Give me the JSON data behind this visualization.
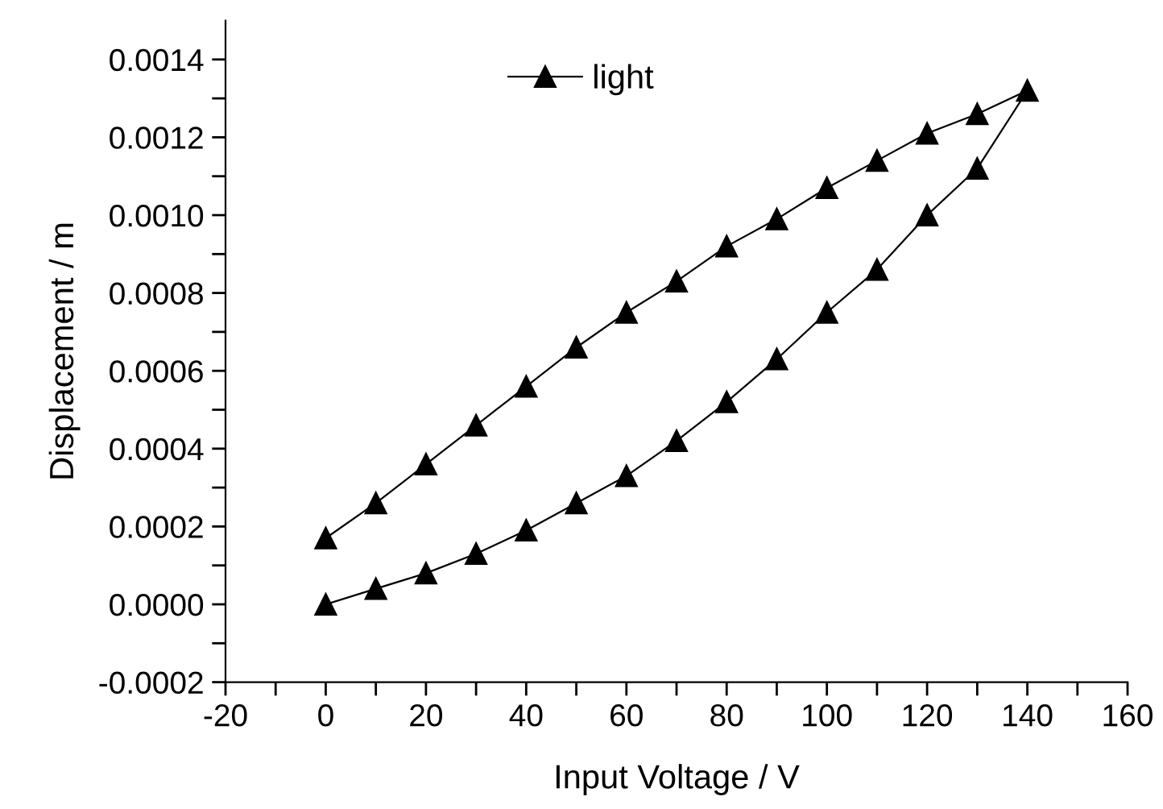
{
  "chart_data": {
    "type": "line",
    "xlabel": "Input Voltage / V",
    "ylabel": "Displacement / m",
    "series": [
      {
        "name": "light",
        "color": "#000000",
        "x": [
          0,
          10,
          20,
          30,
          40,
          50,
          60,
          70,
          80,
          90,
          100,
          110,
          120,
          130,
          140,
          130,
          120,
          110,
          100,
          90,
          80,
          70,
          60,
          50,
          40,
          30,
          20,
          10,
          0
        ],
        "values": [
          0.0,
          4e-05,
          8e-05,
          0.00013,
          0.00019,
          0.00026,
          0.00033,
          0.00042,
          0.00052,
          0.00063,
          0.00075,
          0.00086,
          0.001,
          0.00112,
          0.00132,
          0.00126,
          0.00121,
          0.00114,
          0.00107,
          0.00099,
          0.00092,
          0.00083,
          0.00075,
          0.00066,
          0.00056,
          0.00046,
          0.00036,
          0.00026,
          0.00017
        ]
      }
    ],
    "xlim": [
      -20,
      160
    ],
    "ylim": [
      -0.0002,
      0.0015
    ],
    "xticks": [
      -20,
      {
        "value": -10,
        "label": null
      },
      0,
      {
        "value": 10,
        "label": null
      },
      20,
      {
        "value": 30,
        "label": null
      },
      40,
      {
        "value": 50,
        "label": null
      },
      60,
      {
        "value": 70,
        "label": null
      },
      80,
      {
        "value": 90,
        "label": null
      },
      100,
      {
        "value": 110,
        "label": null
      },
      120,
      {
        "value": 130,
        "label": null
      },
      140,
      {
        "value": 150,
        "label": null
      },
      160
    ],
    "yticks": [
      {
        "value": -0.0002,
        "label": "-0.0002"
      },
      {
        "value": -0.0001,
        "label": null
      },
      {
        "value": 0.0,
        "label": "0.0000"
      },
      {
        "value": 0.0001,
        "label": null
      },
      {
        "value": 0.0002,
        "label": "0.0002"
      },
      {
        "value": 0.0003,
        "label": null
      },
      {
        "value": 0.0004,
        "label": "0.0004"
      },
      {
        "value": 0.0005,
        "label": null
      },
      {
        "value": 0.0006,
        "label": "0.0006"
      },
      {
        "value": 0.0007,
        "label": null
      },
      {
        "value": 0.0008,
        "label": "0.0008"
      },
      {
        "value": 0.0009,
        "label": null
      },
      {
        "value": 0.001,
        "label": "0.0010"
      },
      {
        "value": 0.0011,
        "label": null
      },
      {
        "value": 0.0012,
        "label": "0.0012"
      },
      {
        "value": 0.0013,
        "label": null
      },
      {
        "value": 0.0014,
        "label": "0.0014"
      }
    ],
    "marker": "triangle",
    "line_style": "solid",
    "legend": "top",
    "grid": false
  }
}
